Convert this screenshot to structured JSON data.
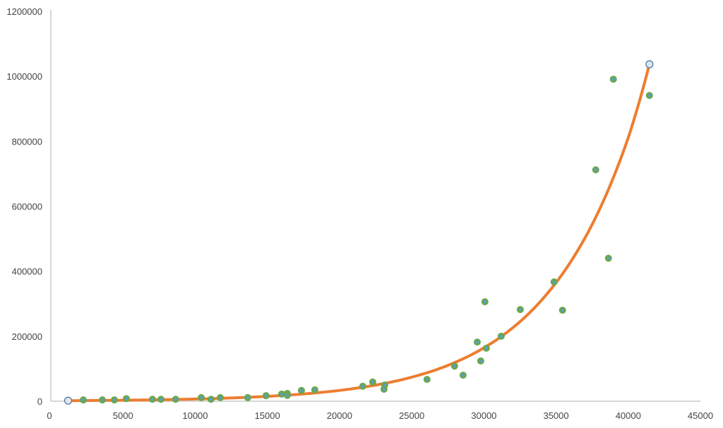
{
  "chart_data": {
    "type": "scatter",
    "title": "",
    "xlabel": "",
    "ylabel": "",
    "xlim": [
      0,
      45000
    ],
    "ylim": [
      0,
      1200000
    ],
    "x_ticks": [
      "0",
      "5000",
      "10000",
      "15000",
      "20000",
      "25000",
      "30000",
      "35000",
      "40000",
      "45000"
    ],
    "y_ticks": [
      "0",
      "200000",
      "400000",
      "600000",
      "800000",
      "1000000",
      "1200000"
    ],
    "grid": false,
    "legend": "none",
    "colors": {
      "point_fill": "#6aa84f",
      "point_center": "#5b9bd5",
      "trendline": "#ed7d31",
      "axis": "#c8c8c8",
      "handle_fill": "#dfe6ea",
      "handle_stroke": "#4a72a8"
    },
    "series": [
      {
        "x": [
          2250,
          3570,
          4400,
          5230,
          7040,
          7630,
          8650,
          10420,
          11100,
          11740,
          13640,
          14910,
          15990,
          16380,
          16380,
          17360,
          18290,
          21610,
          22300,
          23080,
          23130,
          26060,
          27970,
          28560,
          29540,
          29780,
          30070,
          30170,
          31200,
          32520,
          34860,
          35450,
          37750,
          38630,
          38970,
          41470
        ],
        "y": [
          4000,
          4000,
          4000,
          8000,
          6000,
          6000,
          6000,
          11000,
          6000,
          11000,
          11000,
          17000,
          22000,
          24000,
          18000,
          33000,
          35000,
          46000,
          59000,
          37000,
          50000,
          67000,
          108000,
          80000,
          182000,
          124000,
          306000,
          163000,
          200000,
          282000,
          367000,
          280000,
          712000,
          440000,
          991000,
          941000
        ]
      }
    ],
    "trendline": {
      "type": "exponential",
      "x": [
        1200,
        5000,
        10000,
        15000,
        20000,
        25000,
        30000,
        35000,
        40000,
        41470
      ],
      "y": [
        1650,
        3030,
        6730,
        14960,
        33250,
        73900,
        164200,
        364900,
        811000,
        1037000
      ]
    }
  }
}
